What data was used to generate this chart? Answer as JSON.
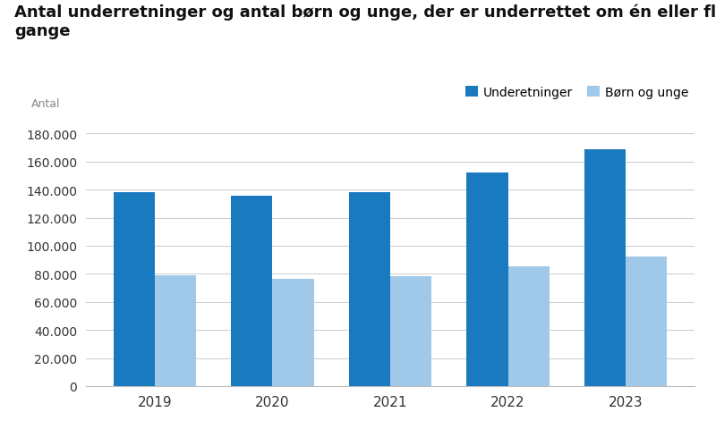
{
  "title_line1": "Antal underretninger og antal børn og unge, der er underrettet om én eller flere",
  "title_line2": "gange",
  "ylabel": "Antal",
  "years": [
    2019,
    2020,
    2021,
    2022,
    2023
  ],
  "underretninger": [
    138000,
    135500,
    138500,
    152000,
    169000
  ],
  "born_og_unge": [
    79000,
    76500,
    78000,
    85000,
    92000
  ],
  "color_underretninger": "#1a7abf",
  "color_born": "#a0c8e8",
  "ylim": [
    0,
    190000
  ],
  "yticks": [
    0,
    20000,
    40000,
    60000,
    80000,
    100000,
    120000,
    140000,
    160000,
    180000
  ],
  "legend_labels": [
    "Underetninger",
    "Børn og unge"
  ],
  "background_color": "#ffffff",
  "title_fontsize": 13,
  "bar_width": 0.35
}
